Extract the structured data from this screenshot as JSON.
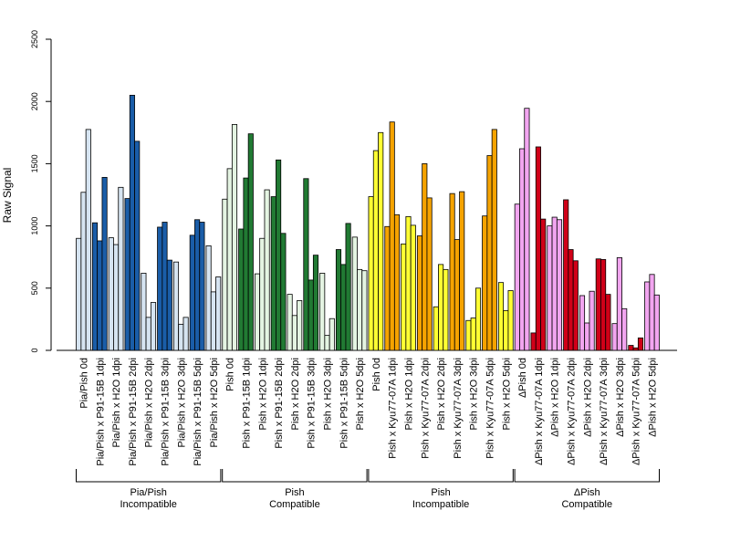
{
  "chart_data": {
    "type": "bar",
    "ylabel": "Raw Signal",
    "ylim": [
      0,
      2500
    ],
    "yticks": [
      0,
      500,
      1000,
      1500,
      2000,
      2500
    ],
    "grid": false,
    "categories": [
      "Pia/Pish 0d",
      "Pia/Pish x P91-15B 1dpi",
      "Pia/Pish x H2O 1dpi",
      "Pia/Pish x P91-15B 2dpi",
      "Pia/Pish x H2O 2dpi",
      "Pia/Pish x P91-15B 3dpi",
      "Pia/Pish x H2O 3dpi",
      "Pia/Pish x P91-15B 5dpi",
      "Pia/Pish x H2O 5dpi",
      "Pish 0d",
      "Pish x P91-15B 1dpi",
      "Pish x H2O 1dpi",
      "Pish x P91-15B 2dpi",
      "Pish x H2O 2dpi",
      "Pish x P91-15B 3dpi",
      "Pish x H2O 3dpi",
      "Pish x P91-15B 5dpi",
      "Pish x H2O 5dpi",
      "Pish 0d",
      "Pish x Kyu77-07A 1dpi",
      "Pish x H2O 1dpi",
      "Pish x Kyu77-07A 2dpi",
      "Pish x H2O 2dpi",
      "Pish x Kyu77-07A 3dpi",
      "Pish x H2O 3dpi",
      "Pish x Kyu77-07A 5dpi",
      "Pish x H2O 5dpi",
      "ΔPish 0d",
      "ΔPish x Kyu77-07A 1dpi",
      "ΔPish x H2O 1dpi",
      "ΔPish x Kyu77-07A 2dpi",
      "ΔPish x H2O 2dpi",
      "ΔPish x Kyu77-07A 3dpi",
      "ΔPish x H2O 3dpi",
      "ΔPish x Kyu77-07A 5dpi",
      "ΔPish x H2O 5dpi"
    ],
    "values": [
      [
        900,
        1270,
        1775
      ],
      [
        1025,
        880,
        1390
      ],
      [
        905,
        850,
        1310
      ],
      [
        1220,
        2050,
        1680
      ],
      [
        620,
        265,
        385
      ],
      [
        990,
        1030,
        725
      ],
      [
        710,
        210,
        265
      ],
      [
        925,
        1050,
        1030
      ],
      [
        840,
        470,
        590
      ],
      [
        1215,
        1460,
        1815
      ],
      [
        975,
        1385,
        1740
      ],
      [
        615,
        900,
        1290
      ],
      [
        1235,
        1530,
        940
      ],
      [
        450,
        280,
        400
      ],
      [
        1380,
        565,
        765
      ],
      [
        620,
        120,
        255
      ],
      [
        810,
        690,
        1020
      ],
      [
        910,
        650,
        640
      ],
      [
        1235,
        1605,
        1750
      ],
      [
        995,
        1835,
        1090
      ],
      [
        855,
        1075,
        1005
      ],
      [
        920,
        1500,
        1225
      ],
      [
        350,
        690,
        650
      ],
      [
        1260,
        890,
        1275
      ],
      [
        240,
        260,
        500
      ],
      [
        1080,
        1565,
        1775
      ],
      [
        545,
        320,
        480
      ],
      [
        1175,
        1620,
        1945
      ],
      [
        140,
        1635,
        1055
      ],
      [
        1000,
        1070,
        1050
      ],
      [
        1210,
        810,
        720
      ],
      [
        440,
        220,
        475
      ],
      [
        735,
        730,
        450
      ],
      [
        215,
        745,
        335
      ],
      [
        40,
        20,
        100
      ],
      [
        550,
        610,
        445
      ]
    ],
    "groups": [
      {
        "label_line1": "Pia/Pish",
        "label_line2": "Incompatible",
        "start": 0,
        "end": 8,
        "colors": [
          "#d6e4f1",
          "#1a5da8"
        ]
      },
      {
        "label_line1": "Pish",
        "label_line2": "Compatible",
        "start": 9,
        "end": 17,
        "colors": [
          "#e4f4e2",
          "#217a33"
        ]
      },
      {
        "label_line1": "Pish",
        "label_line2": "Incompatible",
        "start": 18,
        "end": 26,
        "colors": [
          "#ffff33",
          "#f5a300"
        ]
      },
      {
        "label_line1": "ΔPish",
        "label_line2": "Compatible",
        "start": 27,
        "end": 35,
        "colors": [
          "#f2a5f0",
          "#d00018"
        ]
      }
    ]
  }
}
